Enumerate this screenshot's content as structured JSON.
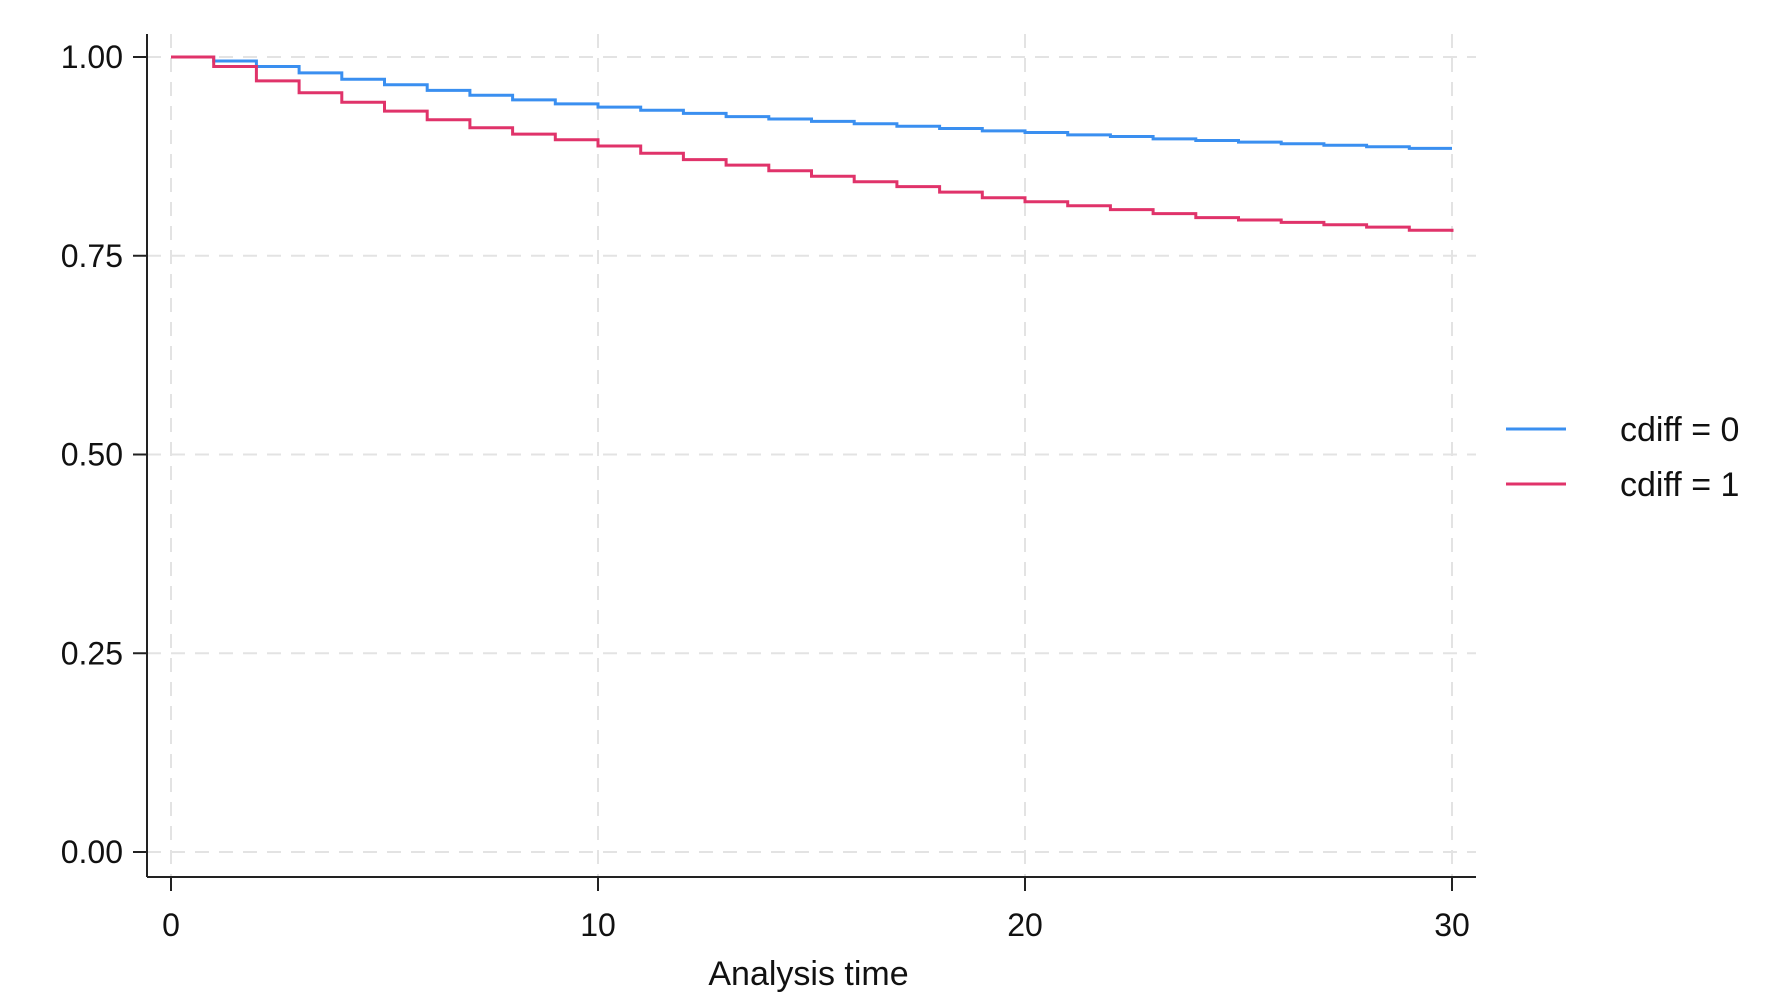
{
  "chart_data": {
    "type": "line",
    "step": true,
    "title": "",
    "xlabel": "Analysis time",
    "ylabel": "",
    "xlim": [
      0,
      30
    ],
    "ylim": [
      0,
      1
    ],
    "xticks": [
      0,
      10,
      20,
      30
    ],
    "xtick_labels": [
      "0",
      "10",
      "20",
      "30"
    ],
    "yticks": [
      0,
      0.25,
      0.5,
      0.75,
      1
    ],
    "ytick_labels": [
      "0.00",
      "0.25",
      "0.50",
      "0.75",
      "1.00"
    ],
    "grid": true,
    "legend": {
      "placement": "right"
    },
    "series": [
      {
        "name": "cdiff = 0",
        "color": "#3a8ff0",
        "x": [
          0,
          1,
          2,
          3,
          4,
          5,
          6,
          7,
          8,
          9,
          10,
          11,
          12,
          13,
          14,
          15,
          16,
          17,
          18,
          19,
          20,
          21,
          22,
          23,
          24,
          25,
          26,
          27,
          28,
          29,
          30
        ],
        "y": [
          1.0,
          0.995,
          0.988,
          0.98,
          0.972,
          0.965,
          0.958,
          0.952,
          0.946,
          0.941,
          0.937,
          0.933,
          0.929,
          0.925,
          0.922,
          0.919,
          0.916,
          0.913,
          0.91,
          0.907,
          0.905,
          0.902,
          0.9,
          0.897,
          0.895,
          0.893,
          0.891,
          0.889,
          0.887,
          0.885,
          0.885
        ]
      },
      {
        "name": "cdiff = 1",
        "color": "#e0336a",
        "x": [
          0,
          1,
          2,
          3,
          4,
          5,
          6,
          7,
          8,
          9,
          10,
          11,
          12,
          13,
          14,
          15,
          16,
          17,
          18,
          19,
          20,
          21,
          22,
          23,
          24,
          25,
          26,
          27,
          28,
          29,
          30
        ],
        "y": [
          1.0,
          0.988,
          0.97,
          0.955,
          0.943,
          0.932,
          0.921,
          0.911,
          0.903,
          0.896,
          0.888,
          0.879,
          0.871,
          0.864,
          0.857,
          0.85,
          0.843,
          0.837,
          0.83,
          0.823,
          0.818,
          0.813,
          0.808,
          0.803,
          0.798,
          0.795,
          0.792,
          0.789,
          0.786,
          0.782,
          0.78
        ]
      }
    ]
  }
}
